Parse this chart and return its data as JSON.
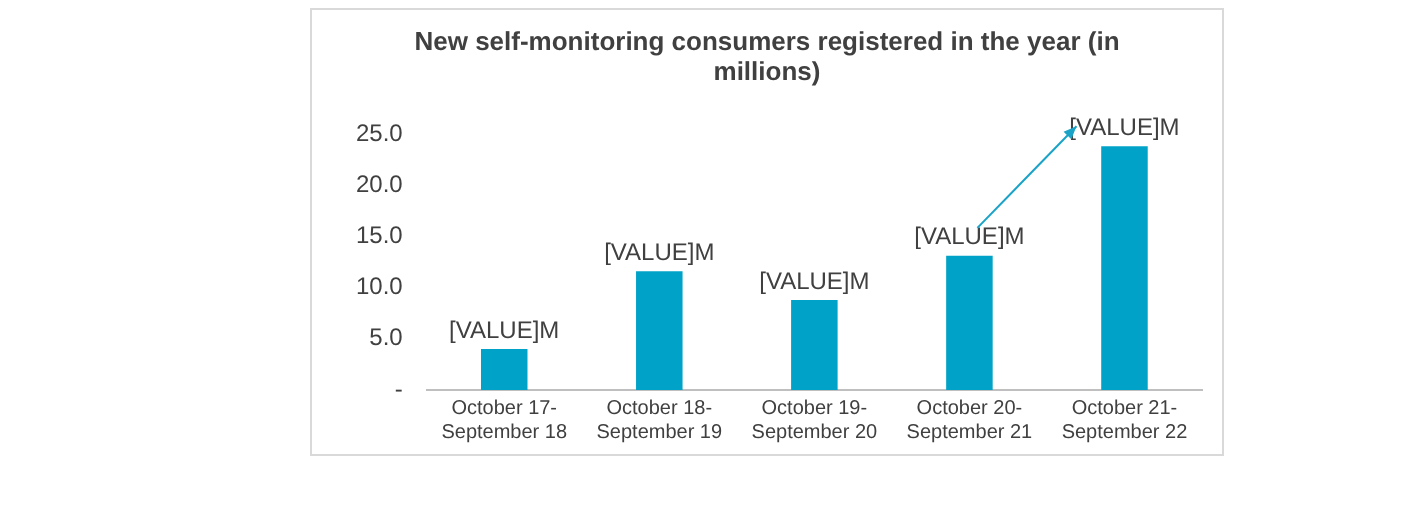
{
  "chart_data": {
    "type": "bar",
    "title": "New self-monitoring consumers registered in the year (in millions)",
    "categories": [
      "October 17- September 18",
      "October 18- September 19",
      "October 19- September 20",
      "October 20- September 21",
      "October 21- September 22"
    ],
    "values": [
      4.0,
      11.6,
      8.8,
      13.1,
      23.8
    ],
    "value_labels": [
      "[VALUE]M",
      "[VALUE]M",
      "[VALUE]M",
      "[VALUE]M",
      "[VALUE]M"
    ],
    "color": "#00a3c7",
    "ylim": [
      0,
      25
    ],
    "yticks": [
      {
        "value": 0,
        "label": "-"
      },
      {
        "value": 5,
        "label": "5.0"
      },
      {
        "value": 10,
        "label": "10.0"
      },
      {
        "value": 15,
        "label": "15.0"
      },
      {
        "value": 20,
        "label": "20.0"
      },
      {
        "value": 25,
        "label": "25.0"
      }
    ],
    "grid": false,
    "legend": false
  }
}
